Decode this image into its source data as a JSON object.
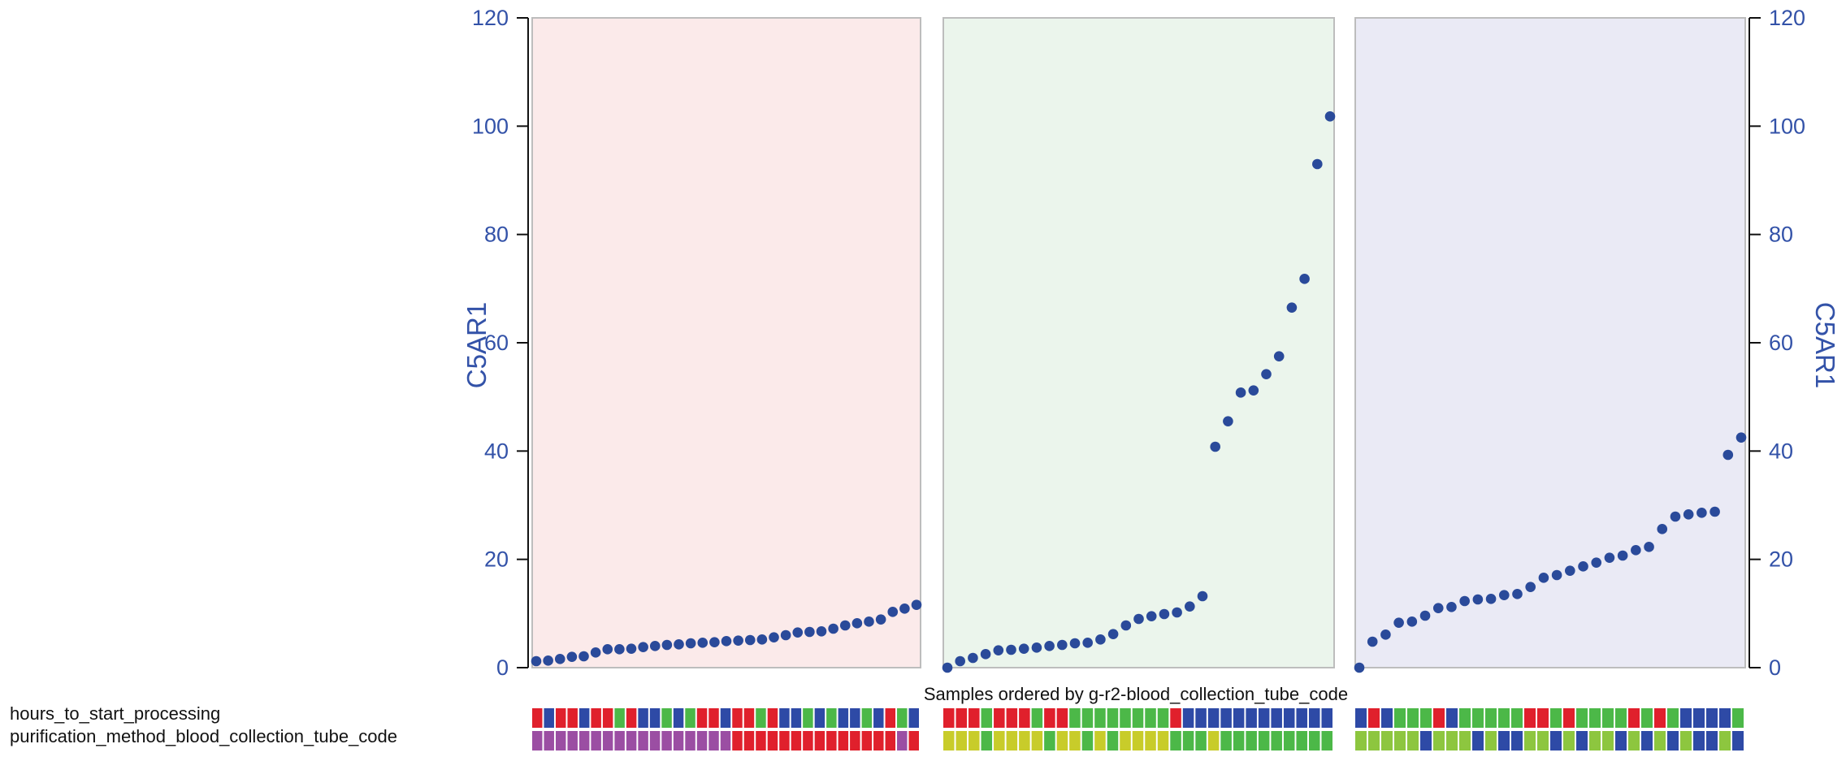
{
  "chart_data": {
    "type": "scatter",
    "xlabel": "Samples ordered by g-r2-blood_collection_tube_code",
    "ylabel_left": "C5AR1",
    "ylabel_right": "C5AR1",
    "ylim": [
      0,
      120
    ],
    "yticks": [
      0,
      20,
      40,
      60,
      80,
      100,
      120
    ],
    "point_color": "#2a4a9a",
    "panels": [
      {
        "background": "#fbeaea",
        "values": [
          1.2,
          1.3,
          1.6,
          2.0,
          2.1,
          2.8,
          3.4,
          3.4,
          3.5,
          3.8,
          4.0,
          4.2,
          4.3,
          4.5,
          4.6,
          4.7,
          4.9,
          5.0,
          5.1,
          5.2,
          5.6,
          6.0,
          6.5,
          6.6,
          6.7,
          7.2,
          7.8,
          8.2,
          8.5,
          8.9,
          10.3,
          10.9,
          11.6
        ]
      },
      {
        "background": "#ebf5ec",
        "values": [
          0.0,
          1.2,
          1.8,
          2.5,
          3.2,
          3.3,
          3.5,
          3.7,
          4.0,
          4.2,
          4.5,
          4.6,
          5.2,
          6.2,
          7.8,
          9.0,
          9.5,
          9.9,
          10.2,
          11.3,
          13.2,
          40.8,
          45.5,
          50.8,
          51.2,
          54.2,
          57.5,
          66.5,
          71.8,
          93.0,
          101.8
        ]
      },
      {
        "background": "#eaeaf5",
        "values": [
          0.0,
          4.8,
          6.1,
          8.3,
          8.5,
          9.6,
          11.0,
          11.2,
          12.3,
          12.6,
          12.7,
          13.4,
          13.6,
          14.9,
          16.6,
          17.1,
          17.9,
          18.7,
          19.4,
          20.3,
          20.7,
          21.7,
          22.3,
          25.6,
          27.9,
          28.3,
          28.6,
          28.8,
          39.3,
          42.5
        ]
      }
    ],
    "tracks": [
      {
        "label": "hours_to_start_processing",
        "panels": [
          [
            "#e0202c",
            "#2e4aa6",
            "#e0202c",
            "#e0202c",
            "#2e4aa6",
            "#e0202c",
            "#e0202c",
            "#4cb848",
            "#e0202c",
            "#2e4aa6",
            "#2e4aa6",
            "#4cb848",
            "#2e4aa6",
            "#4cb848",
            "#e0202c",
            "#e0202c",
            "#2e4aa6",
            "#e0202c",
            "#e0202c",
            "#4cb848",
            "#e0202c",
            "#2e4aa6",
            "#2e4aa6",
            "#4cb848",
            "#2e4aa6",
            "#4cb848",
            "#2e4aa6",
            "#2e4aa6",
            "#4cb848",
            "#2e4aa6",
            "#e0202c",
            "#4cb848",
            "#2e4aa6"
          ],
          [
            "#e0202c",
            "#e0202c",
            "#e0202c",
            "#4cb848",
            "#e0202c",
            "#e0202c",
            "#e0202c",
            "#4cb848",
            "#e0202c",
            "#e0202c",
            "#4cb848",
            "#4cb848",
            "#4cb848",
            "#4cb848",
            "#4cb848",
            "#4cb848",
            "#4cb848",
            "#4cb848",
            "#e0202c",
            "#2e4aa6",
            "#2e4aa6",
            "#2e4aa6",
            "#2e4aa6",
            "#2e4aa6",
            "#2e4aa6",
            "#2e4aa6",
            "#2e4aa6",
            "#2e4aa6",
            "#2e4aa6",
            "#2e4aa6",
            "#2e4aa6"
          ],
          [
            "#2e4aa6",
            "#e0202c",
            "#2e4aa6",
            "#4cb848",
            "#4cb848",
            "#4cb848",
            "#e0202c",
            "#2e4aa6",
            "#4cb848",
            "#4cb848",
            "#4cb848",
            "#4cb848",
            "#4cb848",
            "#e0202c",
            "#e0202c",
            "#4cb848",
            "#e0202c",
            "#4cb848",
            "#4cb848",
            "#4cb848",
            "#4cb848",
            "#e0202c",
            "#4cb848",
            "#e0202c",
            "#4cb848",
            "#2e4aa6",
            "#2e4aa6",
            "#2e4aa6",
            "#2e4aa6",
            "#4cb848"
          ]
        ]
      },
      {
        "label": "purification_method_blood_collection_tube_code",
        "panels": [
          [
            "#9b4ea3",
            "#9b4ea3",
            "#9b4ea3",
            "#9b4ea3",
            "#9b4ea3",
            "#9b4ea3",
            "#9b4ea3",
            "#9b4ea3",
            "#9b4ea3",
            "#9b4ea3",
            "#9b4ea3",
            "#9b4ea3",
            "#9b4ea3",
            "#9b4ea3",
            "#9b4ea3",
            "#9b4ea3",
            "#9b4ea3",
            "#e0202c",
            "#e0202c",
            "#e0202c",
            "#e0202c",
            "#e0202c",
            "#e0202c",
            "#e0202c",
            "#e0202c",
            "#e0202c",
            "#e0202c",
            "#e0202c",
            "#e0202c",
            "#e0202c",
            "#e0202c",
            "#9b4ea3",
            "#e0202c"
          ],
          [
            "#c8cc2a",
            "#c8cc2a",
            "#c8cc2a",
            "#4cb848",
            "#c8cc2a",
            "#c8cc2a",
            "#c8cc2a",
            "#c8cc2a",
            "#4cb848",
            "#c8cc2a",
            "#c8cc2a",
            "#4cb848",
            "#c8cc2a",
            "#4cb848",
            "#c8cc2a",
            "#c8cc2a",
            "#c8cc2a",
            "#c8cc2a",
            "#4cb848",
            "#4cb848",
            "#4cb848",
            "#c8cc2a",
            "#4cb848",
            "#4cb848",
            "#4cb848",
            "#4cb848",
            "#4cb848",
            "#4cb848",
            "#4cb848",
            "#4cb848",
            "#4cb848"
          ],
          [
            "#8dc63f",
            "#8dc63f",
            "#8dc63f",
            "#8dc63f",
            "#8dc63f",
            "#2e4aa6",
            "#8dc63f",
            "#8dc63f",
            "#8dc63f",
            "#2e4aa6",
            "#8dc63f",
            "#2e4aa6",
            "#2e4aa6",
            "#8dc63f",
            "#8dc63f",
            "#2e4aa6",
            "#8dc63f",
            "#2e4aa6",
            "#8dc63f",
            "#8dc63f",
            "#2e4aa6",
            "#8dc63f",
            "#2e4aa6",
            "#8dc63f",
            "#2e4aa6",
            "#8dc63f",
            "#2e4aa6",
            "#2e4aa6",
            "#8dc63f",
            "#2e4aa6"
          ]
        ]
      }
    ]
  }
}
